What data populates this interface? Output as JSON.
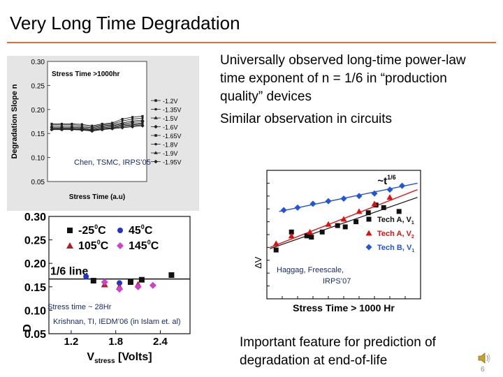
{
  "title": "Very Long Time Degradation",
  "bullets": [
    "Universally observed long-time power-law time exponent of n = 1/6 in “production quality” devices",
    "Similar observation in circuits",
    "Important feature for prediction of degradation at end-of-life"
  ],
  "captions": {
    "chen": "Chen, TSMC, IRPS’05",
    "krishnan": "Krishnan, TI, IEDM’06 (in Islam et. al)",
    "stress_time": "Stress time ~ 28Hr",
    "haggag_1": "Haggag, Freescale,",
    "haggag_2": "IRPS’07"
  },
  "slide_number": "6",
  "colors": {
    "accent_rule": "#e0703a",
    "caption_text": "#1a2a6a"
  },
  "icons": {
    "speaker": "speaker-icon"
  },
  "chart_data": [
    {
      "type": "line",
      "legend_title": "Stress Time >1000hr",
      "xlabel": "Stress Time (a.u)",
      "ylabel": "Degradation Slope n",
      "yticks": [
        "0.30",
        "0.25",
        "0.20",
        "0.15",
        "0.10",
        "0.05"
      ],
      "ylim": [
        0.05,
        0.3
      ],
      "x": [
        1,
        2,
        3,
        4,
        5,
        6,
        7,
        8,
        9,
        10
      ],
      "legend_position": "right",
      "series": [
        {
          "name": "-1.2V",
          "values": [
            0.17,
            0.17,
            0.17,
            0.169,
            0.166,
            0.17,
            0.172,
            0.18,
            0.184,
            0.186
          ]
        },
        {
          "name": "-1.35V",
          "values": [
            0.168,
            0.168,
            0.168,
            0.167,
            0.164,
            0.168,
            0.17,
            0.176,
            0.18,
            0.182
          ]
        },
        {
          "name": "-1.5V",
          "values": [
            0.165,
            0.165,
            0.165,
            0.164,
            0.162,
            0.166,
            0.168,
            0.172,
            0.176,
            0.178
          ]
        },
        {
          "name": "-1.6V",
          "values": [
            0.163,
            0.163,
            0.163,
            0.162,
            0.16,
            0.164,
            0.166,
            0.17,
            0.173,
            0.175
          ]
        },
        {
          "name": "-1.65V",
          "values": [
            0.161,
            0.161,
            0.161,
            0.16,
            0.158,
            0.162,
            0.164,
            0.168,
            0.17,
            0.172
          ]
        },
        {
          "name": "-1.8V",
          "values": [
            0.16,
            0.16,
            0.16,
            0.159,
            0.157,
            0.16,
            0.162,
            0.166,
            0.168,
            0.17
          ]
        },
        {
          "name": "-1.9V",
          "values": [
            0.159,
            0.159,
            0.159,
            0.158,
            0.156,
            0.159,
            0.161,
            0.164,
            0.166,
            0.168
          ]
        },
        {
          "name": "-1.95V",
          "values": [
            0.158,
            0.158,
            0.158,
            0.157,
            0.155,
            0.158,
            0.16,
            0.162,
            0.164,
            0.166
          ]
        }
      ]
    },
    {
      "type": "scatter",
      "xlabel_main": "V",
      "xlabel_sub": "stress",
      "xlabel_unit": " [Volts]",
      "ylabel": "D",
      "xticks": [
        "1.2",
        "1.8",
        "2.4"
      ],
      "xtick_values": [
        1.2,
        1.8,
        2.4
      ],
      "yticks": [
        "0.30",
        "0.25",
        "0.20",
        "0.15",
        "0.10",
        "0.05"
      ],
      "ytick_values": [
        0.3,
        0.25,
        0.2,
        0.15,
        0.1,
        0.05
      ],
      "xlim": [
        0.9,
        2.8
      ],
      "ylim": [
        0.05,
        0.3
      ],
      "reference_line": {
        "label": "1/6 line",
        "value": 0.1667
      },
      "series": [
        {
          "name": "-25",
          "unit": "C",
          "marker": "square",
          "color": "#111111",
          "points": [
            [
              1.5,
              0.163
            ],
            [
              2.0,
              0.16
            ],
            [
              2.15,
              0.165
            ],
            [
              2.55,
              0.175
            ]
          ]
        },
        {
          "name": "45",
          "unit": "C",
          "marker": "circle",
          "color": "#2233cc",
          "points": [
            [
              1.4,
              0.172
            ],
            [
              1.85,
              0.158
            ]
          ]
        },
        {
          "name": "105",
          "unit": "C",
          "marker": "triangle",
          "color": "#aa2222",
          "points": [
            [
              1.65,
              0.155
            ],
            [
              1.85,
              0.15
            ],
            [
              2.1,
              0.155
            ]
          ]
        },
        {
          "name": "145",
          "unit": "C",
          "marker": "diamond",
          "color": "#d040d0",
          "points": [
            [
              1.65,
              0.16
            ],
            [
              1.85,
              0.145
            ],
            [
              2.1,
              0.15
            ],
            [
              2.3,
              0.153
            ]
          ]
        }
      ]
    },
    {
      "type": "scatter",
      "xlabel": "Stress Time > 1000 Hr",
      "ylabel": "∆V",
      "annotation": "~t",
      "annotation_sup": "1/6",
      "xlim": [
        0,
        10
      ],
      "ylim": [
        0,
        10
      ],
      "series": [
        {
          "name": "Tech A, V",
          "sub": "1",
          "marker": "square",
          "color": "#111111",
          "points": [
            [
              0.6,
              3.8
            ],
            [
              1.6,
              5.2
            ],
            [
              2.6,
              4.9
            ],
            [
              2.9,
              4.8
            ],
            [
              3.6,
              5.2
            ],
            [
              4.6,
              5.7
            ],
            [
              5.1,
              5.6
            ],
            [
              5.8,
              6.0
            ],
            [
              6.6,
              6.7
            ],
            [
              7.1,
              7.3
            ],
            [
              7.6,
              7.1
            ],
            [
              8.6,
              6.8
            ]
          ]
        },
        {
          "name": "Tech A, V",
          "sub": "2",
          "marker": "triangle",
          "color": "#dd1111",
          "points": [
            [
              0.6,
              4.3
            ],
            [
              1.6,
              4.9
            ],
            [
              2.8,
              5.2
            ],
            [
              4.0,
              5.8
            ],
            [
              5.0,
              6.2
            ],
            [
              6.0,
              6.8
            ],
            [
              7.0,
              7.4
            ],
            [
              8.0,
              7.9
            ]
          ]
        },
        {
          "name": "Tech B, V",
          "sub": "1",
          "marker": "diamond",
          "color": "#2255dd",
          "points": [
            [
              1.1,
              6.9
            ],
            [
              2.0,
              7.1
            ],
            [
              3.0,
              7.4
            ],
            [
              4.0,
              7.6
            ],
            [
              5.0,
              7.8
            ],
            [
              6.0,
              8.0
            ],
            [
              7.0,
              8.2
            ],
            [
              8.0,
              8.5
            ],
            [
              8.8,
              8.8
            ]
          ]
        }
      ]
    }
  ]
}
